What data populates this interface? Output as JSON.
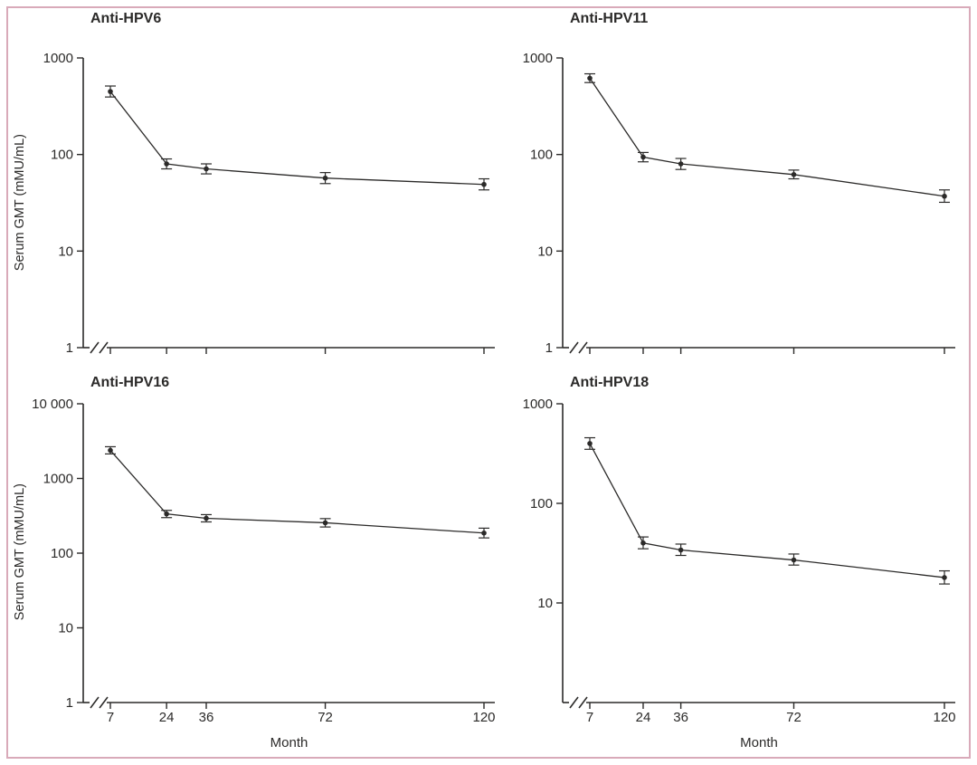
{
  "shared": {
    "ink": "#2b2a29",
    "background": "#ffffff",
    "frame_color": "#d9aab9",
    "ylabel": "Serum GMT (mMU/mL)",
    "xlabel": "Month",
    "months": [
      7,
      24,
      36,
      72,
      120
    ]
  },
  "chart_data": [
    {
      "type": "line",
      "title": "Anti-HPV6",
      "ylabel": "Serum GMT (mMU/mL)",
      "x": [
        7,
        24,
        36,
        72,
        120
      ],
      "y": [
        449,
        80,
        71,
        57,
        49
      ],
      "err_lo": [
        394,
        71,
        63,
        50,
        43
      ],
      "err_hi": [
        512,
        90,
        80,
        65,
        56
      ],
      "ylim": [
        1,
        1000
      ],
      "yscale": "log",
      "yticks": [
        "1000",
        "100",
        "10",
        "1"
      ],
      "xticklabels": [],
      "grid": false,
      "axis_break_x": true
    },
    {
      "type": "line",
      "title": "Anti-HPV11",
      "x": [
        7,
        24,
        36,
        72,
        120
      ],
      "y": [
        617,
        94,
        80,
        62,
        37
      ],
      "err_lo": [
        556,
        84,
        70,
        56,
        32
      ],
      "err_hi": [
        685,
        105,
        91,
        69,
        43
      ],
      "ylim": [
        1,
        1000
      ],
      "yscale": "log",
      "yticks": [
        "1000",
        "100",
        "10",
        "1"
      ],
      "xticklabels": [],
      "grid": false,
      "axis_break_x": true
    },
    {
      "type": "line",
      "title": "Anti-HPV16",
      "ylabel": "Serum GMT (mMU/mL)",
      "xlabel": "Month",
      "x": [
        7,
        24,
        36,
        72,
        120
      ],
      "y": [
        2380,
        335,
        293,
        255,
        186
      ],
      "err_lo": [
        2130,
        299,
        262,
        224,
        160
      ],
      "err_hi": [
        2660,
        374,
        328,
        290,
        216
      ],
      "ylim": [
        1,
        10000
      ],
      "yscale": "log",
      "yticks": [
        "10 000",
        "1000",
        "100",
        "10",
        "1"
      ],
      "xticklabels": [
        "7",
        "24",
        "36",
        "72",
        "120"
      ],
      "grid": false,
      "axis_break_x": true
    },
    {
      "type": "line",
      "title": "Anti-HPV18",
      "xlabel": "Month",
      "x": [
        7,
        24,
        36,
        72,
        120
      ],
      "y": [
        399,
        40,
        34,
        27,
        18
      ],
      "err_lo": [
        349,
        35,
        30,
        24,
        15.5
      ],
      "err_hi": [
        456,
        46,
        39,
        31,
        21
      ],
      "ylim": [
        1,
        1000
      ],
      "yscale": "log",
      "yticks": [
        "1000",
        "100",
        "10"
      ],
      "xticklabels": [
        "7",
        "24",
        "36",
        "72",
        "120"
      ],
      "grid": false,
      "axis_break_x": true
    }
  ]
}
